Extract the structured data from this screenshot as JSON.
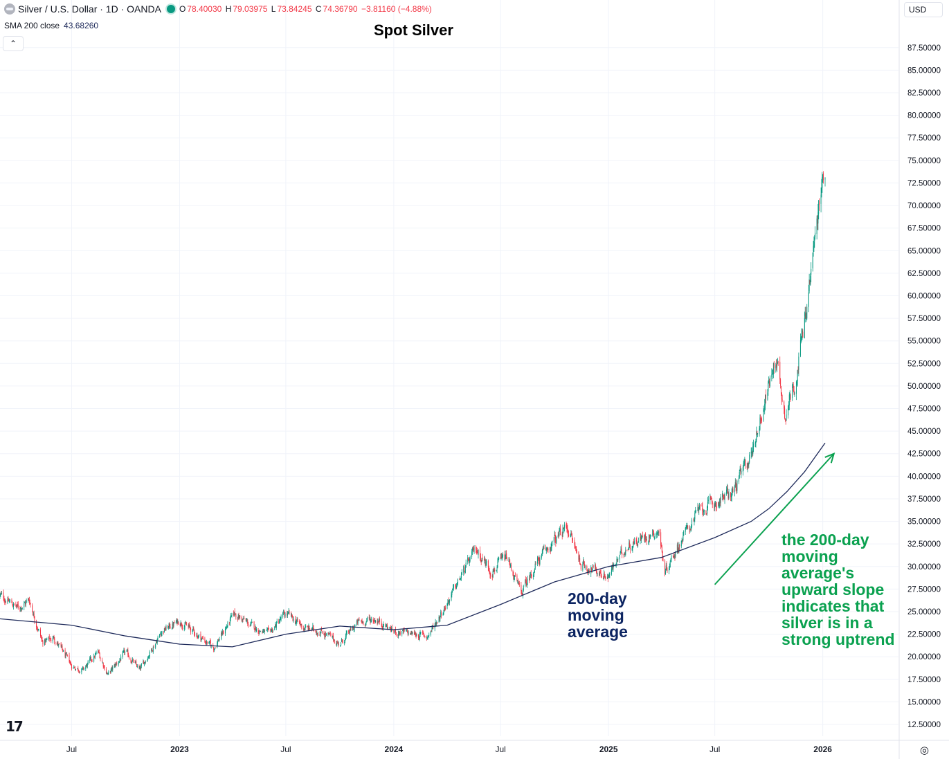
{
  "header": {
    "symbol": "Silver / U.S. Dollar · 1D · OANDA",
    "o_label": "O",
    "o_value": "78.40030",
    "h_label": "H",
    "h_value": "79.03975",
    "l_label": "L",
    "l_value": "73.84245",
    "c_label": "C",
    "c_value": "74.36790",
    "change": "−3.81160 (−4.88%)"
  },
  "indicator": {
    "label": "SMA 200 close",
    "value": "43.68260"
  },
  "collapse_glyph": "⌃",
  "currency": "USD",
  "annotations": {
    "ma": "200-day\nmoving\naverage",
    "uptrend": "the 200-day\nmoving\naverage's\nupward slope\nindicates that\nsilver is in a\nstrong uptrend"
  },
  "logo_text": "17",
  "settings_glyph": "◎",
  "colors": {
    "up": "#089981",
    "down": "#f23645",
    "sma": "#1e2a5a",
    "annotation_arrow": "#0aa14f",
    "grid": "#f0f3fa"
  },
  "chart_data": {
    "type": "line",
    "title": "Spot Silver",
    "xlabel": "",
    "ylabel": "",
    "ylim": [
      11.2,
      89.4
    ],
    "x_ticks": [
      "Jul",
      "2023",
      "Jul",
      "2024",
      "Jul",
      "2025",
      "Jul",
      "2026"
    ],
    "y_ticks": [
      "87.50000",
      "85.00000",
      "82.50000",
      "80.00000",
      "77.50000",
      "75.00000",
      "72.50000",
      "70.00000",
      "67.50000",
      "65.00000",
      "62.50000",
      "60.00000",
      "57.50000",
      "55.00000",
      "52.50000",
      "50.00000",
      "47.50000",
      "45.00000",
      "42.50000",
      "40.00000",
      "37.50000",
      "35.00000",
      "32.50000",
      "30.00000",
      "27.50000",
      "25.00000",
      "22.50000",
      "20.00000",
      "17.50000",
      "15.00000",
      "12.50000"
    ],
    "y_tick_values": [
      87.5,
      85,
      82.5,
      80,
      77.5,
      75,
      72.5,
      70,
      67.5,
      65,
      62.5,
      60,
      57.5,
      55,
      52.5,
      50,
      47.5,
      45,
      42.5,
      40,
      37.5,
      35,
      32.5,
      30,
      27.5,
      25,
      22.5,
      20,
      17.5,
      15,
      12.5
    ],
    "x_tick_dates": [
      "2022-07-01",
      "2023-01-01",
      "2023-07-01",
      "2024-01-01",
      "2024-07-01",
      "2025-01-01",
      "2025-07-01",
      "2026-01-01"
    ],
    "x_domain": [
      "2022-03-01",
      "2026-05-10"
    ],
    "series": [
      {
        "style": "candlestick",
        "x": [
          "2022-03-01",
          "2022-04-01",
          "2022-04-20",
          "2022-05-12",
          "2022-06-01",
          "2022-07-01",
          "2022-07-20",
          "2022-08-15",
          "2022-09-01",
          "2022-10-01",
          "2022-10-25",
          "2022-12-01",
          "2023-01-01",
          "2023-02-28",
          "2023-04-05",
          "2023-05-01",
          "2023-06-01",
          "2023-07-01",
          "2023-08-01",
          "2023-09-01",
          "2023-10-01",
          "2023-11-01",
          "2023-12-01",
          "2024-01-01",
          "2024-02-28",
          "2024-04-01",
          "2024-05-20",
          "2024-06-15",
          "2024-07-11",
          "2024-08-05",
          "2024-09-01",
          "2024-10-22",
          "2024-11-15",
          "2024-12-31",
          "2025-02-01",
          "2025-03-27",
          "2025-04-07",
          "2025-05-01",
          "2025-06-01",
          "2025-07-01",
          "2025-08-01",
          "2025-09-01",
          "2025-10-14",
          "2025-10-28",
          "2025-11-15",
          "2025-12-01",
          "2025-12-20",
          "2025-12-29",
          "2026-01-05"
        ],
        "close": [
          26.8,
          25.4,
          26.3,
          21.6,
          22.1,
          19.0,
          18.5,
          20.5,
          18.0,
          20.5,
          18.5,
          22.8,
          24.0,
          21.0,
          24.8,
          23.5,
          22.5,
          24.8,
          23.2,
          22.8,
          21.4,
          23.8,
          24.2,
          22.8,
          22.3,
          26.0,
          32.0,
          29.5,
          31.0,
          27.0,
          30.5,
          34.5,
          30.3,
          28.9,
          32.3,
          34.0,
          29.5,
          32.5,
          36.0,
          37.0,
          38.3,
          42.5,
          53.3,
          46.9,
          50.5,
          57.0,
          67.0,
          71.5,
          74.4
        ]
      },
      {
        "name": "SMA 200 close",
        "style": "line",
        "x": [
          "2022-03-01",
          "2022-07-01",
          "2022-10-01",
          "2023-01-01",
          "2023-04-01",
          "2023-07-01",
          "2023-10-01",
          "2024-01-01",
          "2024-04-01",
          "2024-07-01",
          "2024-10-01",
          "2025-01-01",
          "2025-04-01",
          "2025-07-01",
          "2025-09-01",
          "2025-10-01",
          "2025-11-01",
          "2025-12-01",
          "2026-01-05"
        ],
        "values": [
          24.2,
          23.5,
          22.3,
          21.4,
          21.1,
          22.5,
          23.4,
          23.0,
          23.5,
          25.8,
          28.3,
          30.0,
          31.0,
          33.2,
          35.0,
          36.4,
          38.3,
          40.5,
          43.68
        ]
      }
    ],
    "arrow": {
      "from": [
        "2025-07-01",
        28.0
      ],
      "to": [
        "2026-01-20",
        42.5
      ]
    },
    "grid": true,
    "legend": "top-left"
  }
}
